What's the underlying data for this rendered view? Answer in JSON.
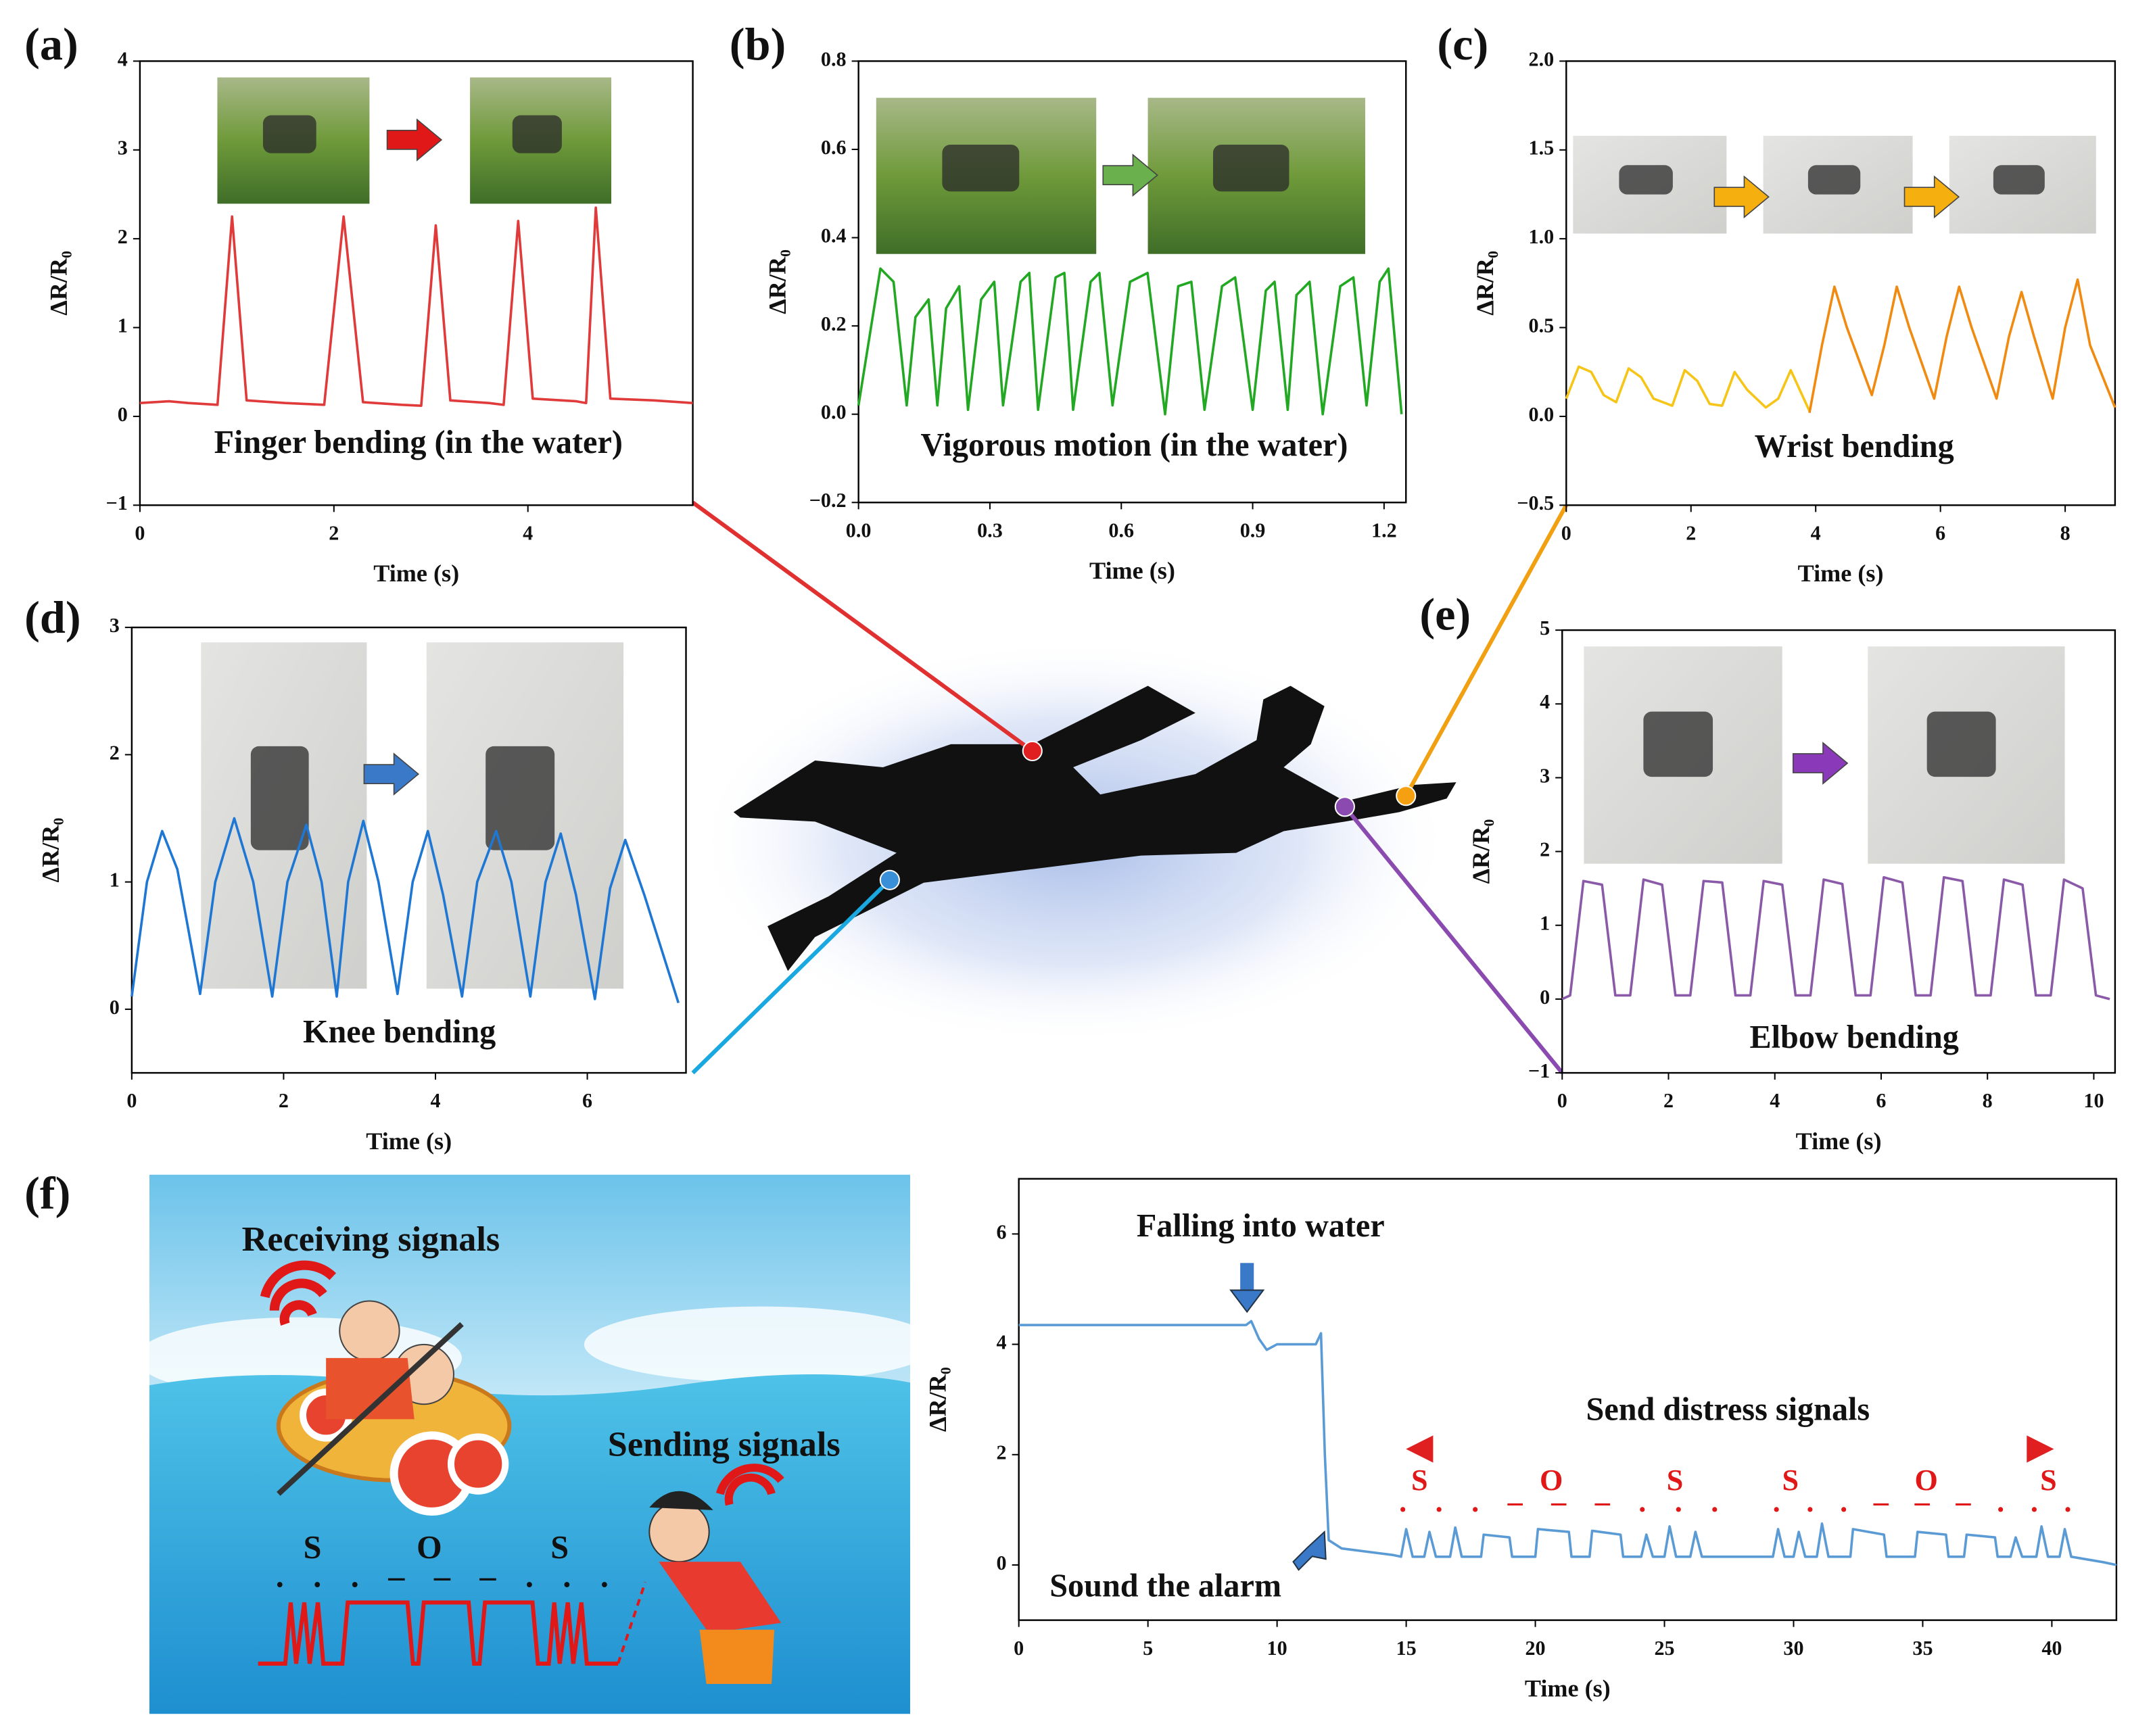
{
  "chart_data": [
    {
      "type": "line",
      "panel": "(a)",
      "xlabel": "Time (s)",
      "ylabel": "ΔR/R₀",
      "annotations": [
        "Finger bending (in the water)"
      ],
      "xlim": [
        0,
        5.7
      ],
      "xticks": [
        0,
        2,
        4
      ],
      "ylim": [
        -1,
        4
      ],
      "yticks": [
        {
          "value": -1,
          "label": "−1"
        },
        0,
        1,
        2,
        3,
        4
      ],
      "series": [
        {
          "color": "#e03a3a",
          "x": [
            0,
            0.3,
            0.5,
            0.8,
            0.95,
            1.1,
            1.5,
            1.9,
            2.1,
            2.3,
            2.7,
            2.9,
            3.05,
            3.2,
            3.6,
            3.75,
            3.9,
            4.05,
            4.5,
            4.6,
            4.7,
            4.85,
            5.3,
            5.7
          ],
          "values": [
            0.15,
            0.17,
            0.15,
            0.13,
            2.25,
            0.18,
            0.15,
            0.13,
            2.25,
            0.16,
            0.13,
            0.12,
            2.15,
            0.18,
            0.15,
            0.13,
            2.2,
            0.2,
            0.17,
            0.15,
            2.35,
            0.2,
            0.18,
            0.15
          ]
        }
      ]
    },
    {
      "type": "line",
      "panel": "(b)",
      "xlabel": "Time (s)",
      "ylabel": "ΔR/R₀",
      "annotations": [
        "Vigorous motion (in the water)"
      ],
      "xlim": [
        0,
        1.25
      ],
      "xticks": [
        {
          "value": 0,
          "label": "0.0"
        },
        0.3,
        0.6,
        0.9,
        1.2
      ],
      "ylim": [
        -0.2,
        0.8
      ],
      "yticks": [
        {
          "value": -0.2,
          "label": "−0.2"
        },
        {
          "value": 0,
          "label": "0.0"
        },
        0.2,
        0.4,
        0.6,
        0.8
      ],
      "series": [
        {
          "color": "#22a822",
          "x": [
            0,
            0.05,
            0.08,
            0.11,
            0.13,
            0.16,
            0.18,
            0.2,
            0.23,
            0.25,
            0.28,
            0.31,
            0.33,
            0.37,
            0.39,
            0.41,
            0.45,
            0.47,
            0.49,
            0.53,
            0.55,
            0.58,
            0.62,
            0.66,
            0.7,
            0.73,
            0.76,
            0.79,
            0.83,
            0.86,
            0.9,
            0.93,
            0.95,
            0.98,
            1.0,
            1.03,
            1.06,
            1.1,
            1.13,
            1.16,
            1.19,
            1.21,
            1.24
          ],
          "values": [
            0.02,
            0.33,
            0.3,
            0.02,
            0.22,
            0.26,
            0.02,
            0.24,
            0.29,
            0.01,
            0.26,
            0.3,
            0.02,
            0.3,
            0.32,
            0.01,
            0.31,
            0.32,
            0.01,
            0.3,
            0.32,
            0.02,
            0.3,
            0.32,
            0.0,
            0.29,
            0.3,
            0.01,
            0.29,
            0.31,
            0.01,
            0.28,
            0.3,
            0.01,
            0.27,
            0.3,
            0.0,
            0.29,
            0.31,
            0.02,
            0.3,
            0.33,
            0.0
          ]
        }
      ]
    },
    {
      "type": "line",
      "panel": "(c)",
      "xlabel": "Time (s)",
      "ylabel": "ΔR/R₀",
      "annotations": [
        "Wrist bending"
      ],
      "xlim": [
        0,
        8.8
      ],
      "xticks": [
        0,
        2,
        4,
        6,
        8
      ],
      "ylim": [
        -0.5,
        2.0
      ],
      "yticks": [
        {
          "value": -0.5,
          "label": "−0.5"
        },
        {
          "value": 0,
          "label": "0.0"
        },
        0.5,
        {
          "value": 1,
          "label": "1.0"
        },
        1.5,
        {
          "value": 2,
          "label": "2.0"
        }
      ],
      "series": [
        {
          "color": "#f5c518",
          "x": [
            0,
            0.2,
            0.4,
            0.6,
            0.8,
            1.0,
            1.2,
            1.4,
            1.7,
            1.9,
            2.1,
            2.3,
            2.5,
            2.7,
            2.9,
            3.2,
            3.4,
            3.6,
            3.9
          ],
          "values": [
            0.1,
            0.28,
            0.25,
            0.12,
            0.08,
            0.27,
            0.22,
            0.1,
            0.06,
            0.26,
            0.2,
            0.07,
            0.06,
            0.25,
            0.15,
            0.05,
            0.1,
            0.26,
            0.03
          ]
        },
        {
          "color": "#f08a10",
          "x": [
            3.9,
            4.1,
            4.3,
            4.5,
            4.9,
            5.1,
            5.3,
            5.5,
            5.9,
            6.1,
            6.3,
            6.5,
            6.9,
            7.1,
            7.3,
            7.5,
            7.8,
            8.0,
            8.2,
            8.4,
            8.8
          ],
          "values": [
            0.02,
            0.4,
            0.73,
            0.5,
            0.12,
            0.4,
            0.73,
            0.5,
            0.1,
            0.45,
            0.73,
            0.5,
            0.1,
            0.45,
            0.7,
            0.45,
            0.1,
            0.5,
            0.77,
            0.4,
            0.05
          ]
        }
      ]
    },
    {
      "type": "line",
      "panel": "(d)",
      "xlabel": "Time (s)",
      "ylabel": "ΔR/R₀",
      "annotations": [
        "Knee bending"
      ],
      "xlim": [
        0,
        7.3
      ],
      "xticks": [
        0,
        2,
        4,
        6
      ],
      "ylim": [
        -0.5,
        3
      ],
      "yticks": [
        0,
        1,
        2,
        3
      ],
      "series": [
        {
          "color": "#1f77d4",
          "x": [
            0,
            0.2,
            0.4,
            0.6,
            0.9,
            1.1,
            1.35,
            1.6,
            1.85,
            2.05,
            2.3,
            2.5,
            2.7,
            2.85,
            3.05,
            3.25,
            3.5,
            3.7,
            3.9,
            4.1,
            4.35,
            4.55,
            4.8,
            5.0,
            5.25,
            5.45,
            5.65,
            5.85,
            6.1,
            6.3,
            6.5,
            6.75,
            7.2
          ],
          "values": [
            0.1,
            1.0,
            1.4,
            1.1,
            0.12,
            1.0,
            1.5,
            1.0,
            0.1,
            1.0,
            1.45,
            1.0,
            0.1,
            1.0,
            1.48,
            1.0,
            0.12,
            1.0,
            1.4,
            0.9,
            0.1,
            1.0,
            1.4,
            1.0,
            0.1,
            1.0,
            1.38,
            0.9,
            0.08,
            0.95,
            1.33,
            0.9,
            0.05
          ]
        }
      ]
    },
    {
      "type": "line",
      "panel": "(e)",
      "xlabel": "Time (s)",
      "ylabel": "ΔR/R₀",
      "annotations": [
        "Elbow bending"
      ],
      "xlim": [
        0,
        10.4
      ],
      "xticks": [
        0,
        2,
        4,
        6,
        8,
        10
      ],
      "ylim": [
        -1,
        5
      ],
      "yticks": [
        {
          "value": -1,
          "label": "−1"
        },
        0,
        1,
        2,
        3,
        4,
        5
      ],
      "series": [
        {
          "color": "#8a5aa8",
          "x": [
            0,
            0.15,
            0.4,
            0.75,
            1.0,
            1.28,
            1.53,
            1.88,
            2.13,
            2.41,
            2.66,
            3.01,
            3.26,
            3.54,
            3.79,
            4.14,
            4.39,
            4.67,
            4.92,
            5.27,
            5.52,
            5.8,
            6.05,
            6.4,
            6.65,
            6.93,
            7.18,
            7.53,
            7.78,
            8.06,
            8.31,
            8.66,
            8.91,
            9.19,
            9.44,
            9.79,
            10.04,
            10.3
          ],
          "values": [
            0.0,
            0.05,
            1.6,
            1.55,
            0.05,
            0.05,
            1.62,
            1.55,
            0.05,
            0.05,
            1.6,
            1.58,
            0.05,
            0.05,
            1.6,
            1.55,
            0.05,
            0.05,
            1.62,
            1.56,
            0.05,
            0.05,
            1.65,
            1.58,
            0.05,
            0.05,
            1.65,
            1.6,
            0.05,
            0.05,
            1.62,
            1.55,
            0.05,
            0.05,
            1.62,
            1.5,
            0.05,
            0.0
          ]
        }
      ]
    },
    {
      "type": "line",
      "panel": "(f)",
      "xlabel": "Time (s)",
      "ylabel": "ΔR/R₀",
      "annotations": [
        "Falling into water",
        "Sound the alarm",
        "Send distress signals",
        "S",
        "O",
        "S",
        "S",
        "O",
        "S",
        ". . . – – – . . .",
        ". . . – – – . . ."
      ],
      "xlim": [
        0,
        42.5
      ],
      "xticks": [
        0,
        5,
        10,
        15,
        20,
        25,
        30,
        35,
        40
      ],
      "ylim": [
        -1,
        7
      ],
      "yticks": [
        0,
        2,
        4,
        6
      ],
      "series": [
        {
          "color": "#5b9bd5",
          "x": [
            0,
            8.8,
            9.0,
            9.3,
            9.6,
            10.0,
            11.5,
            11.7,
            11.85,
            12.0,
            12.5,
            14.5,
            14.8,
            15.0,
            15.25,
            15.7,
            15.9,
            16.15,
            16.7,
            16.9,
            17.15,
            17.9,
            18.0,
            19.0,
            19.1,
            20.0,
            20.1,
            21.3,
            21.4,
            22.1,
            22.2,
            23.3,
            23.4,
            24.1,
            24.3,
            24.55,
            25.0,
            25.2,
            25.45,
            26.0,
            26.2,
            26.45,
            29.0,
            29.2,
            29.4,
            29.65,
            30.0,
            30.2,
            30.45,
            30.9,
            31.1,
            31.35,
            32.2,
            32.3,
            33.5,
            33.6,
            34.7,
            34.8,
            35.9,
            36.0,
            36.6,
            36.7,
            37.8,
            37.9,
            38.4,
            38.6,
            38.85,
            39.4,
            39.6,
            39.85,
            40.3,
            40.5,
            40.75,
            42.0,
            42.5
          ],
          "values": [
            4.35,
            4.35,
            4.42,
            4.1,
            3.9,
            4.0,
            4.0,
            4.2,
            2.0,
            0.45,
            0.3,
            0.18,
            0.15,
            0.65,
            0.15,
            0.15,
            0.6,
            0.15,
            0.15,
            0.68,
            0.15,
            0.15,
            0.55,
            0.5,
            0.15,
            0.15,
            0.65,
            0.6,
            0.15,
            0.15,
            0.62,
            0.55,
            0.15,
            0.15,
            0.55,
            0.15,
            0.15,
            0.7,
            0.15,
            0.15,
            0.6,
            0.15,
            0.15,
            0.15,
            0.65,
            0.15,
            0.15,
            0.6,
            0.15,
            0.15,
            0.75,
            0.15,
            0.15,
            0.65,
            0.55,
            0.15,
            0.15,
            0.6,
            0.55,
            0.15,
            0.15,
            0.55,
            0.5,
            0.15,
            0.15,
            0.5,
            0.15,
            0.15,
            0.7,
            0.15,
            0.15,
            0.65,
            0.15,
            0.05,
            0.0
          ]
        }
      ]
    }
  ],
  "illustration": {
    "texts": [
      "Receiving signals",
      "Sending signals",
      "S",
      "O",
      "S",
      ". . . – – – . . ."
    ]
  }
}
